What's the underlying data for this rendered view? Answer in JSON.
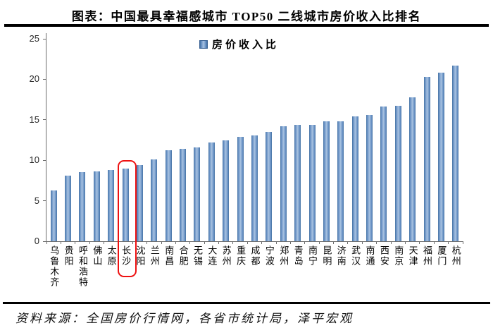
{
  "title": "图表：中国最具幸福感城市 TOP50 二线城市房价收入比排名",
  "source_note": "资料来源：全国房价行情网，各省市统计局，泽平宏观",
  "legend": {
    "label": "房价收入比"
  },
  "colors": {
    "bar_edge": "#44719f",
    "bar_mid": "#aac4e2",
    "axis": "#6b6b6b",
    "highlight_box": "#ee1111",
    "rule": "#000000"
  },
  "chart_data": {
    "type": "bar",
    "title": "图表：中国最具幸福感城市 TOP50 二线城市房价收入比排名",
    "series_name": "房价收入比",
    "legend_position": "top-center",
    "categories": [
      "乌鲁木齐",
      "贵阳",
      "呼和浩特",
      "佛山",
      "太原",
      "长沙",
      "沈阳",
      "兰州",
      "南昌",
      "合肥",
      "无锡",
      "大连",
      "苏州",
      "重庆",
      "成都",
      "宁波",
      "郑州",
      "青岛",
      "南宁",
      "昆明",
      "济南",
      "武汉",
      "南通",
      "西安",
      "南京",
      "天津",
      "福州",
      "厦门",
      "杭州"
    ],
    "values": [
      6.3,
      8.1,
      8.5,
      8.6,
      8.8,
      9.0,
      9.4,
      10.1,
      11.2,
      11.4,
      11.6,
      12.2,
      12.5,
      12.9,
      13.1,
      13.5,
      14.2,
      14.4,
      14.4,
      14.8,
      14.8,
      15.4,
      15.6,
      16.6,
      16.7,
      17.8,
      20.3,
      20.8,
      21.7
    ],
    "xlabel": "",
    "ylabel": "",
    "ylim": [
      0,
      25
    ],
    "yticks": [
      0,
      5,
      10,
      15,
      20,
      25
    ],
    "grid": false,
    "highlight_category": "长沙"
  }
}
